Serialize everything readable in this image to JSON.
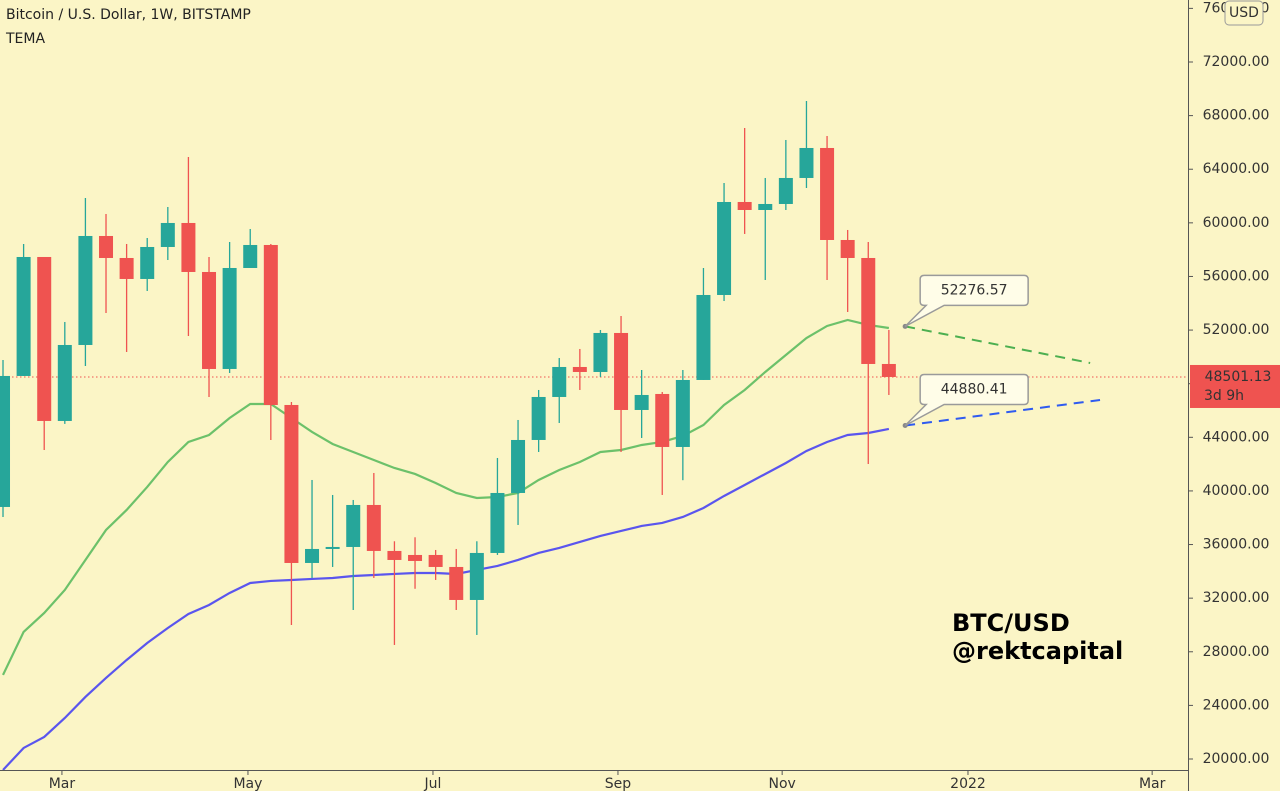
{
  "chart_data": {
    "type": "candlestick",
    "title": "Bitcoin / U.S. Dollar, 1W, BITSTAMP",
    "subtitle": "TEMA",
    "annotations": [
      "BTC/USD",
      "@rektcapital"
    ],
    "currency": "USD",
    "countdown": "3d 9h",
    "xlim": [
      -0.146,
      57.52
    ],
    "xticks": [
      {
        "value": 2.86,
        "label": "Mar"
      },
      {
        "value": 11.89,
        "label": "May"
      },
      {
        "value": 20.87,
        "label": "Jul"
      },
      {
        "value": 29.85,
        "label": "Sep"
      },
      {
        "value": 37.82,
        "label": "Nov"
      },
      {
        "value": 46.84,
        "label": "2022"
      },
      {
        "value": 55.78,
        "label": "Mar"
      }
    ],
    "ylim": [
      19180,
      76625
    ],
    "yticks": [
      {
        "value": 20000,
        "label": "20000.00"
      },
      {
        "value": 24000,
        "label": "24000.00"
      },
      {
        "value": 28000,
        "label": "28000.00"
      },
      {
        "value": 32000,
        "label": "32000.00"
      },
      {
        "value": 36000,
        "label": "36000.00"
      },
      {
        "value": 40000,
        "label": "40000.00"
      },
      {
        "value": 44000,
        "label": "44000.00"
      },
      {
        "value": 48000,
        "label": "48000.00"
      },
      {
        "value": 52000,
        "label": "52000.00"
      },
      {
        "value": 56000,
        "label": "56000.00"
      },
      {
        "value": 60000,
        "label": "60000.00"
      },
      {
        "value": 64000,
        "label": "64000.00"
      },
      {
        "value": 68000,
        "label": "68000.00"
      },
      {
        "value": 72000,
        "label": "72000.00"
      },
      {
        "value": 76000,
        "label": "76000.00"
      }
    ],
    "up_color": "#26a69a",
    "down_color": "#ef5350",
    "candles": {
      "x": [
        0,
        1,
        2,
        3,
        4,
        5,
        6,
        7,
        8,
        9,
        10,
        11,
        12,
        13,
        14,
        15,
        16,
        17,
        18,
        19,
        20,
        21,
        22,
        23,
        24,
        25,
        26,
        27,
        28,
        29,
        30,
        31,
        32,
        33,
        34,
        35,
        36,
        37,
        38,
        39,
        40,
        41,
        42,
        43
      ],
      "open": [
        38803,
        48576,
        57453,
        45219,
        50888,
        59020,
        57378,
        55812,
        58199,
        59990,
        56334,
        49098,
        56632,
        58348,
        46412,
        34625,
        35670,
        35819,
        38952,
        35521,
        35222,
        35222,
        34327,
        31865,
        35372,
        39847,
        43801,
        47009,
        49247,
        48874,
        51784,
        46039,
        47233,
        43279,
        48277,
        54618,
        61556,
        60959,
        61407,
        63347,
        65585,
        58721,
        57378,
        49471
      ],
      "high": [
        49769,
        58423,
        57453,
        52604,
        61854,
        60661,
        58423,
        58870,
        61183,
        64913,
        57453,
        58572,
        59542,
        58423,
        46636,
        40817,
        39698,
        39325,
        41339,
        36244,
        36542,
        35595,
        35670,
        36244,
        42458,
        45293,
        47531,
        49918,
        50590,
        52007,
        53051,
        49022,
        47382,
        49022,
        56632,
        62973,
        67076,
        63347,
        66182,
        69091,
        66480,
        59468,
        58572,
        52007
      ],
      "low": [
        38057,
        48576,
        43055,
        45000,
        49322,
        53275,
        50366,
        54917,
        57229,
        51560,
        47009,
        48800,
        56632,
        43801,
        30000,
        33506,
        34327,
        31118,
        33506,
        28508,
        32700,
        33357,
        31118,
        29254,
        35223,
        37460,
        42906,
        45069,
        47531,
        48500,
        42906,
        43950,
        39698,
        40800,
        48277,
        54170,
        59170,
        55737,
        60959,
        62600,
        55737,
        53350,
        42011,
        47158
      ],
      "close": [
        48576,
        57453,
        45219,
        50888,
        59020,
        57378,
        55812,
        58199,
        59990,
        56334,
        49098,
        56632,
        58348,
        46412,
        34625,
        35670,
        35819,
        38952,
        35521,
        34849,
        34774,
        34327,
        31865,
        35372,
        39847,
        43801,
        47009,
        49247,
        48874,
        51784,
        46039,
        47158,
        43279,
        48277,
        54618,
        61556,
        60959,
        61407,
        63347,
        65585,
        58721,
        57378,
        49471,
        48501.13
      ]
    },
    "lines": [
      {
        "color": "#6cc16a",
        "values": [
          26270,
          29478,
          30895,
          32611,
          34849,
          37087,
          38579,
          40295,
          42160,
          43652,
          44174,
          45442,
          46487,
          46487,
          45442,
          44398,
          43503,
          42906,
          42309,
          41712,
          41265,
          40593,
          39847,
          39474,
          39549,
          39847,
          40817,
          41563,
          42160,
          42906,
          43055,
          43428,
          43652,
          44100,
          44920,
          46412,
          47531,
          48874,
          50142,
          51410,
          52306,
          52753,
          52380,
          52156
        ]
      },
      {
        "color": "#5a55ee",
        "values": [
          19183,
          20824,
          21645,
          23062,
          24629,
          26046,
          27389,
          28657,
          29776,
          30821,
          31492,
          32387,
          33133,
          33283,
          33357,
          33432,
          33506,
          33655,
          33730,
          33805,
          33879,
          33879,
          33805,
          34103,
          34402,
          34849,
          35371,
          35744,
          36192,
          36640,
          37013,
          37386,
          37609,
          38057,
          38728,
          39624,
          40444,
          41265,
          42085,
          42981,
          43652,
          44174,
          44323,
          44622
        ]
      }
    ],
    "projections": [
      {
        "color": "#4caf50",
        "x": [
          43.79,
          52.77
        ],
        "values": [
          52276.57,
          49545
        ]
      },
      {
        "color": "#2f5bf0",
        "x": [
          43.79,
          53.25
        ],
        "values": [
          44880.41,
          46785
        ]
      }
    ]
  }
}
